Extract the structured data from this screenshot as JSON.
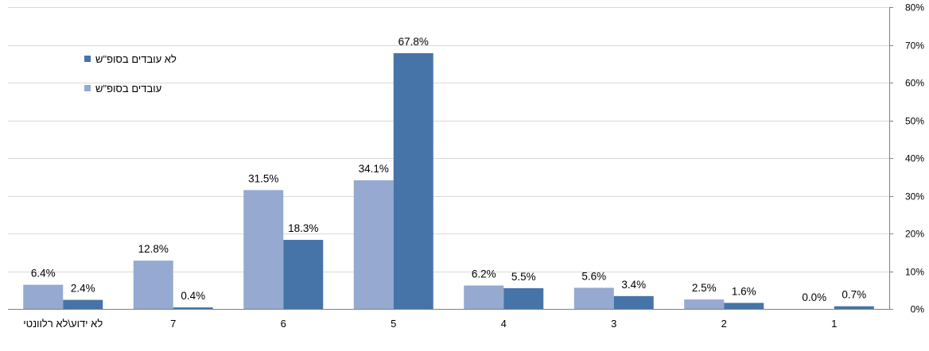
{
  "chart_data": {
    "type": "bar",
    "categories": [
      "לא ידוע\\לא רלוונטי",
      "7",
      "6",
      "5",
      "4",
      "3",
      "2",
      "1"
    ],
    "series": [
      {
        "name": "עובדים בסופ\"ש",
        "color": "#95A9D1",
        "values": [
          6.4,
          12.8,
          31.5,
          34.1,
          6.2,
          5.6,
          2.5,
          0.0
        ],
        "labels": [
          "6.4%",
          "12.8%",
          "31.5%",
          "34.1%",
          "6.2%",
          "5.6%",
          "2.5%",
          "0.0%"
        ]
      },
      {
        "name": "לא עובדים בסופ\"ש",
        "color": "#4674A8",
        "values": [
          2.4,
          0.4,
          18.3,
          67.8,
          5.5,
          3.4,
          1.6,
          0.7
        ],
        "labels": [
          "2.4%",
          "0.4%",
          "18.3%",
          "67.8%",
          "5.5%",
          "3.4%",
          "1.6%",
          "0.7%"
        ]
      }
    ],
    "ylim": [
      0,
      80
    ],
    "yticks": [
      0,
      10,
      20,
      30,
      40,
      50,
      60,
      70,
      80
    ],
    "ytick_labels": [
      "0%",
      "10%",
      "20%",
      "30%",
      "40%",
      "50%",
      "60%",
      "70%",
      "80%"
    ],
    "y_axis_side": "right",
    "grid": true,
    "legend": {
      "placement": "top-left",
      "order": [
        "לא עובדים בסופ\"ש",
        "עובדים בסופ\"ש"
      ]
    }
  }
}
